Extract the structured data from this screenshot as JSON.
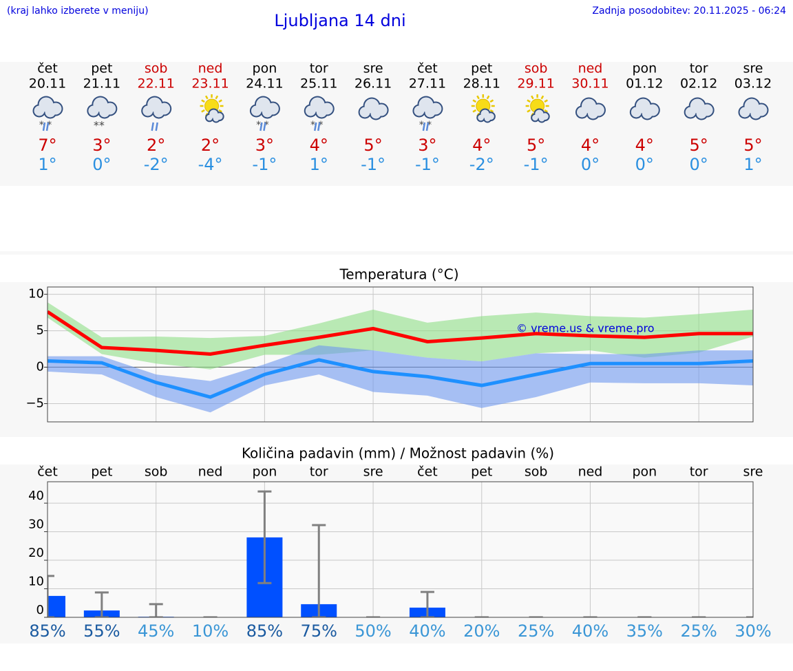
{
  "header": {
    "hint": "(kraj lahko izberete v meniju)",
    "title": "Ljubljana 14 dni",
    "updated": "Zadnja posodobitev: 20.11.2025 - 06:24"
  },
  "forecast": {
    "days": [
      "čet",
      "pet",
      "sob",
      "ned",
      "pon",
      "tor",
      "sre",
      "čet",
      "pet",
      "sob",
      "ned",
      "pon",
      "tor",
      "sre"
    ],
    "dates": [
      "20.11",
      "21.11",
      "22.11",
      "23.11",
      "24.11",
      "25.11",
      "26.11",
      "27.11",
      "28.11",
      "29.11",
      "30.11",
      "01.12",
      "02.12",
      "03.12"
    ],
    "day_colors": [
      "#000000",
      "#000000",
      "#cc0000",
      "#cc0000",
      "#000000",
      "#000000",
      "#000000",
      "#000000",
      "#000000",
      "#cc0000",
      "#cc0000",
      "#000000",
      "#000000",
      "#000000"
    ],
    "icons": [
      "cloud-sleet",
      "cloud-snow",
      "cloud-rain",
      "sun-cloud",
      "cloud-sleet",
      "cloud-sleet",
      "cloud",
      "cloud-sleet",
      "sun-cloud",
      "sun-cloud",
      "cloud",
      "cloud",
      "cloud",
      "cloud"
    ],
    "max": [
      7,
      3,
      2,
      2,
      3,
      4,
      5,
      3,
      4,
      5,
      4,
      4,
      5,
      5
    ],
    "max_labels": [
      "7°",
      "3°",
      "2°",
      "2°",
      "3°",
      "4°",
      "5°",
      "3°",
      "4°",
      "5°",
      "4°",
      "4°",
      "5°",
      "5°"
    ],
    "max_color": "#cc0000",
    "min": [
      1,
      0,
      -2,
      -4,
      -1,
      1,
      -1,
      -1,
      -2,
      -1,
      0,
      0,
      0,
      1
    ],
    "min_labels": [
      "1°",
      "0°",
      "-2°",
      "-4°",
      "-1°",
      "1°",
      "-1°",
      "-1°",
      "-2°",
      "-1°",
      "0°",
      "0°",
      "0°",
      "1°"
    ],
    "min_color": "#2a8fe0"
  },
  "chart_data": [
    {
      "type": "line",
      "title": "Temperatura (°C)",
      "annotation": "© vreme.us & vreme.pro",
      "ylim": [
        -7.5,
        11
      ],
      "yticks": [
        {
          "value": -5,
          "label": "−5"
        },
        0,
        5,
        10
      ],
      "grid": true,
      "series": [
        {
          "type": "band",
          "color": "#8ede86",
          "upper": [
            8.9,
            4.1,
            4.2,
            4.0,
            4.3,
            6.0,
            7.9,
            6.1,
            7.0,
            7.5,
            7.0,
            6.8,
            7.3,
            7.9
          ],
          "lower": [
            6.8,
            1.8,
            0.5,
            -0.3,
            1.7,
            1.7,
            2.3,
            1.3,
            0.8,
            1.9,
            2.3,
            1.3,
            2.0,
            4.2
          ]
        },
        {
          "type": "band",
          "color": "#6e97ee",
          "upper": [
            1.5,
            1.5,
            -1.0,
            -1.9,
            0.4,
            3.0,
            2.3,
            1.3,
            0.8,
            1.9,
            1.8,
            1.8,
            2.3,
            2.3
          ],
          "lower": [
            -0.6,
            -1.0,
            -4.1,
            -6.2,
            -2.5,
            -1.0,
            -3.4,
            -3.9,
            -5.6,
            -4.1,
            -2.1,
            -2.2,
            -2.2,
            -2.5
          ]
        },
        {
          "type": "line",
          "color": "#ff0000",
          "values": [
            7.6,
            2.7,
            2.3,
            1.8,
            3.0,
            4.1,
            5.3,
            3.5,
            4.0,
            4.6,
            4.3,
            4.1,
            4.6,
            4.6
          ]
        },
        {
          "type": "line",
          "color": "#1e90ff",
          "values": [
            0.85,
            0.6,
            -2.1,
            -4.1,
            -1.0,
            1.0,
            -0.6,
            -1.3,
            -2.5,
            -1.0,
            0.5,
            0.5,
            0.5,
            0.85
          ]
        }
      ]
    },
    {
      "type": "bar",
      "title": "Količina padavin (mm) / Možnost padavin (%)",
      "categories": [
        "čet",
        "pet",
        "sob",
        "ned",
        "pon",
        "tor",
        "sre",
        "čet",
        "pet",
        "sob",
        "ned",
        "pon",
        "tor",
        "sre"
      ],
      "values": [
        7.5,
        2.4,
        0.2,
        0,
        28,
        4.6,
        0,
        3.4,
        0,
        0,
        0,
        0,
        0,
        0
      ],
      "error_low": [
        0,
        0,
        0,
        0,
        12,
        0,
        0,
        0,
        0,
        0,
        0,
        0,
        0,
        0
      ],
      "error_high": [
        14.5,
        8.7,
        4.6,
        0,
        44.1,
        32.3,
        0,
        8.9,
        0,
        0,
        0,
        0,
        0,
        0
      ],
      "color": "#0050ff",
      "error_color": "#808080",
      "ylim": [
        0,
        47.5
      ],
      "yticks": [
        0,
        10,
        20,
        30,
        40
      ],
      "grid": true,
      "probability": [
        85,
        55,
        45,
        10,
        85,
        75,
        50,
        40,
        20,
        25,
        40,
        35,
        25,
        30
      ],
      "probability_labels": [
        "85%",
        "55%",
        "45%",
        "10%",
        "85%",
        "75%",
        "50%",
        "40%",
        "20%",
        "25%",
        "40%",
        "35%",
        "25%",
        "30%"
      ],
      "probability_colors": [
        "#1a5aa0",
        "#1a5aa0",
        "#3a96d6",
        "#3a96d6",
        "#1a5aa0",
        "#1a5aa0",
        "#3a96d6",
        "#3a96d6",
        "#3a96d6",
        "#3a96d6",
        "#3a96d6",
        "#3a96d6",
        "#3a96d6",
        "#3a96d6"
      ]
    }
  ]
}
